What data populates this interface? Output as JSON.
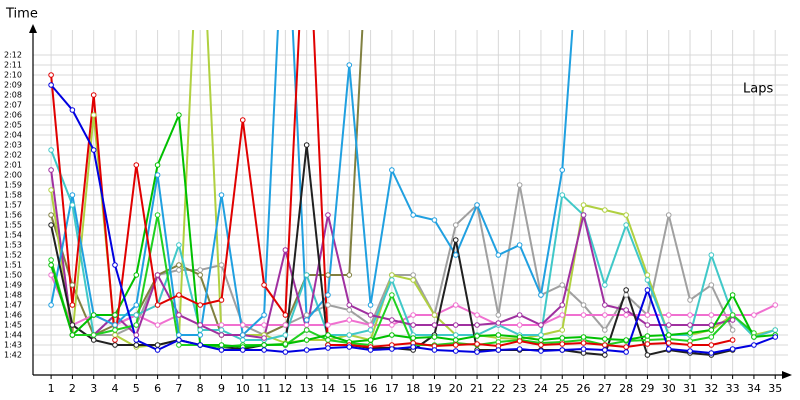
{
  "chart_data": {
    "type": "line",
    "x_label": "Laps",
    "y_label": "Time",
    "grid": true,
    "xlim": [
      0.15,
      35.6
    ],
    "xticks": [
      1,
      2,
      3,
      4,
      5,
      6,
      7,
      8,
      9,
      10,
      11,
      12,
      13,
      14,
      15,
      16,
      17,
      18,
      19,
      20,
      21,
      22,
      23,
      24,
      25,
      26,
      27,
      28,
      29,
      30,
      31,
      32,
      33,
      34,
      35
    ],
    "ylim": [
      100,
      134
    ],
    "yticks": [
      {
        "value": 102,
        "label": "1:42"
      },
      {
        "value": 103,
        "label": "1:43"
      },
      {
        "value": 104,
        "label": "1:44"
      },
      {
        "value": 105,
        "label": "1:45"
      },
      {
        "value": 106,
        "label": "1:46"
      },
      {
        "value": 107,
        "label": "1:47"
      },
      {
        "value": 108,
        "label": "1:48"
      },
      {
        "value": 109,
        "label": "1:49"
      },
      {
        "value": 110,
        "label": "1:50"
      },
      {
        "value": 111,
        "label": "1:51"
      },
      {
        "value": 112,
        "label": "1:52"
      },
      {
        "value": 113,
        "label": "1:53"
      },
      {
        "value": 114,
        "label": "1:54"
      },
      {
        "value": 115,
        "label": "1:55"
      },
      {
        "value": 116,
        "label": "1:56"
      },
      {
        "value": 117,
        "label": "1:57"
      },
      {
        "value": 118,
        "label": "1:58"
      },
      {
        "value": 119,
        "label": "1:59"
      },
      {
        "value": 120,
        "label": "2:00"
      },
      {
        "value": 121,
        "label": "2:01"
      },
      {
        "value": 122,
        "label": "2:02"
      },
      {
        "value": 123,
        "label": "2:03"
      },
      {
        "value": 124,
        "label": "2:04"
      },
      {
        "value": 125,
        "label": "2:05"
      },
      {
        "value": 126,
        "label": "2:06"
      },
      {
        "value": 127,
        "label": "2:07"
      },
      {
        "value": 128,
        "label": "2:08"
      },
      {
        "value": 129,
        "label": "2:09"
      },
      {
        "value": 130,
        "label": "2:10"
      },
      {
        "value": 131,
        "label": "2:11"
      },
      {
        "value": 132,
        "label": "2:12"
      }
    ],
    "x": [
      1,
      2,
      3,
      4,
      5,
      6,
      7,
      8,
      9,
      10,
      11,
      12,
      13,
      14,
      15,
      16,
      17,
      18,
      19,
      20,
      21,
      22,
      23,
      24,
      25,
      26,
      27,
      28,
      29,
      30,
      31,
      32,
      33,
      34,
      35
    ],
    "series": [
      {
        "color": "#a0a0a0",
        "values": [
          null,
          104,
          104,
          104,
          105,
          110,
          110.5,
          110.5,
          111,
          105,
          104,
          105,
          106,
          107,
          106.5,
          105,
          110,
          110,
          106,
          115,
          117,
          106,
          119,
          108,
          109,
          107,
          104.5,
          108,
          106,
          116,
          107.5,
          109,
          104.5,
          null,
          null
        ]
      },
      {
        "color": "#808040",
        "values": [
          116,
          109,
          104,
          105,
          106,
          110,
          111,
          110,
          104,
          104,
          104,
          105,
          110,
          110,
          110,
          150,
          null,
          null,
          null,
          null,
          null,
          null,
          null,
          null,
          null,
          null,
          null,
          null,
          null,
          null,
          null,
          null,
          null,
          null,
          null
        ]
      },
      {
        "color": "#f070d0",
        "values": [
          110,
          105,
          106,
          105,
          106,
          105,
          106,
          105,
          105,
          105,
          105,
          105,
          105,
          105,
          105.5,
          105,
          105,
          106,
          106,
          107,
          106,
          105,
          105,
          105,
          106,
          106,
          106,
          106,
          106,
          106,
          106,
          106,
          106,
          106,
          107
        ]
      },
      {
        "color": "#b0d040",
        "values": [
          118.5,
          104,
          126,
          104,
          102.8,
          103,
          103.5,
          150,
          104,
          104,
          104,
          103.2,
          103.5,
          103.5,
          104,
          103.5,
          110,
          109.5,
          106,
          104,
          104,
          103.7,
          103.6,
          104,
          104.5,
          117,
          116.5,
          116,
          110,
          104,
          104,
          104.5,
          106,
          104,
          104.5
        ]
      },
      {
        "color": "#40c8c8",
        "values": [
          122.5,
          117,
          104,
          106,
          106,
          107,
          113,
          104.5,
          104.5,
          103.5,
          103.5,
          104,
          110,
          104,
          104,
          104.5,
          109.5,
          104,
          104,
          104,
          104,
          105,
          104,
          104,
          118,
          116,
          109,
          115,
          109.5,
          104,
          104,
          112,
          106,
          103.8,
          104.5
        ]
      },
      {
        "color": "#a030a0",
        "values": [
          120.5,
          104,
          104,
          106,
          104,
          110,
          106,
          105,
          104,
          104,
          103.7,
          112.5,
          104.5,
          116,
          107,
          106,
          105.5,
          105,
          105,
          105,
          105,
          105.2,
          106,
          105,
          107,
          116,
          107,
          106.5,
          105,
          105,
          105,
          105,
          105.5,
          null,
          null
        ]
      },
      {
        "color": "#20a0e0",
        "values": [
          107,
          118,
          106,
          105,
          107,
          120,
          104,
          104,
          118,
          104,
          106,
          150,
          105.5,
          108,
          131,
          107,
          120.5,
          116,
          115.5,
          112,
          117,
          112,
          113,
          108,
          120.5,
          150,
          null,
          null,
          null,
          null,
          null,
          null,
          null,
          null,
          null
        ]
      },
      {
        "color": "#202020",
        "values": [
          115,
          105,
          103.5,
          103,
          103,
          103,
          103.5,
          103,
          102.8,
          102.6,
          103,
          103,
          123,
          103,
          103,
          102.7,
          102.7,
          102.5,
          104,
          113.5,
          102.5,
          102.5,
          102.5,
          102.5,
          102.5,
          102.2,
          102,
          108.5,
          102,
          102.5,
          102.2,
          102,
          102.5,
          null,
          null
        ]
      },
      {
        "color": "#20d020",
        "values": [
          111.5,
          104,
          104,
          104.5,
          105,
          116,
          103,
          103,
          102.8,
          103,
          103,
          103,
          104.5,
          103.5,
          103.2,
          103,
          108,
          103,
          103,
          103.2,
          103,
          103.3,
          103.5,
          103.2,
          103.3,
          103.5,
          103,
          103.4,
          103.5,
          103.6,
          103.4,
          103.8,
          106,
          104.2,
          null
        ]
      },
      {
        "color": "#00c000",
        "values": [
          111,
          104,
          106,
          106,
          110,
          121,
          126,
          103,
          103,
          102.8,
          103,
          103.1,
          103.5,
          104,
          103.3,
          103.5,
          104,
          103.7,
          103.8,
          103.5,
          103.9,
          104,
          103.8,
          103.5,
          103.7,
          103.8,
          103.6,
          103.5,
          103.9,
          104,
          104.2,
          104.5,
          108,
          103.8,
          104
        ]
      },
      {
        "color": "#e00000",
        "values": [
          130,
          107,
          128,
          103.5,
          121,
          107,
          108,
          107,
          107.5,
          125.5,
          109,
          106,
          150,
          103,
          103,
          102.8,
          103,
          103.2,
          102.9,
          103,
          103.1,
          102.9,
          103.4,
          103,
          103.1,
          103.2,
          103,
          102.8,
          103.1,
          103.2,
          103,
          103,
          103.5,
          null,
          null
        ]
      },
      {
        "color": "#0000e0",
        "values": [
          129,
          126.5,
          122.5,
          111,
          103.5,
          102.5,
          103.5,
          103,
          102.5,
          102.5,
          102.5,
          102.3,
          102.5,
          102.7,
          102.8,
          102.5,
          102.6,
          102.8,
          102.5,
          102.4,
          102.3,
          102.5,
          102.6,
          102.4,
          102.5,
          102.6,
          102.5,
          102.3,
          108.5,
          102.6,
          102.4,
          102.2,
          102.6,
          103,
          103.8
        ]
      }
    ]
  }
}
